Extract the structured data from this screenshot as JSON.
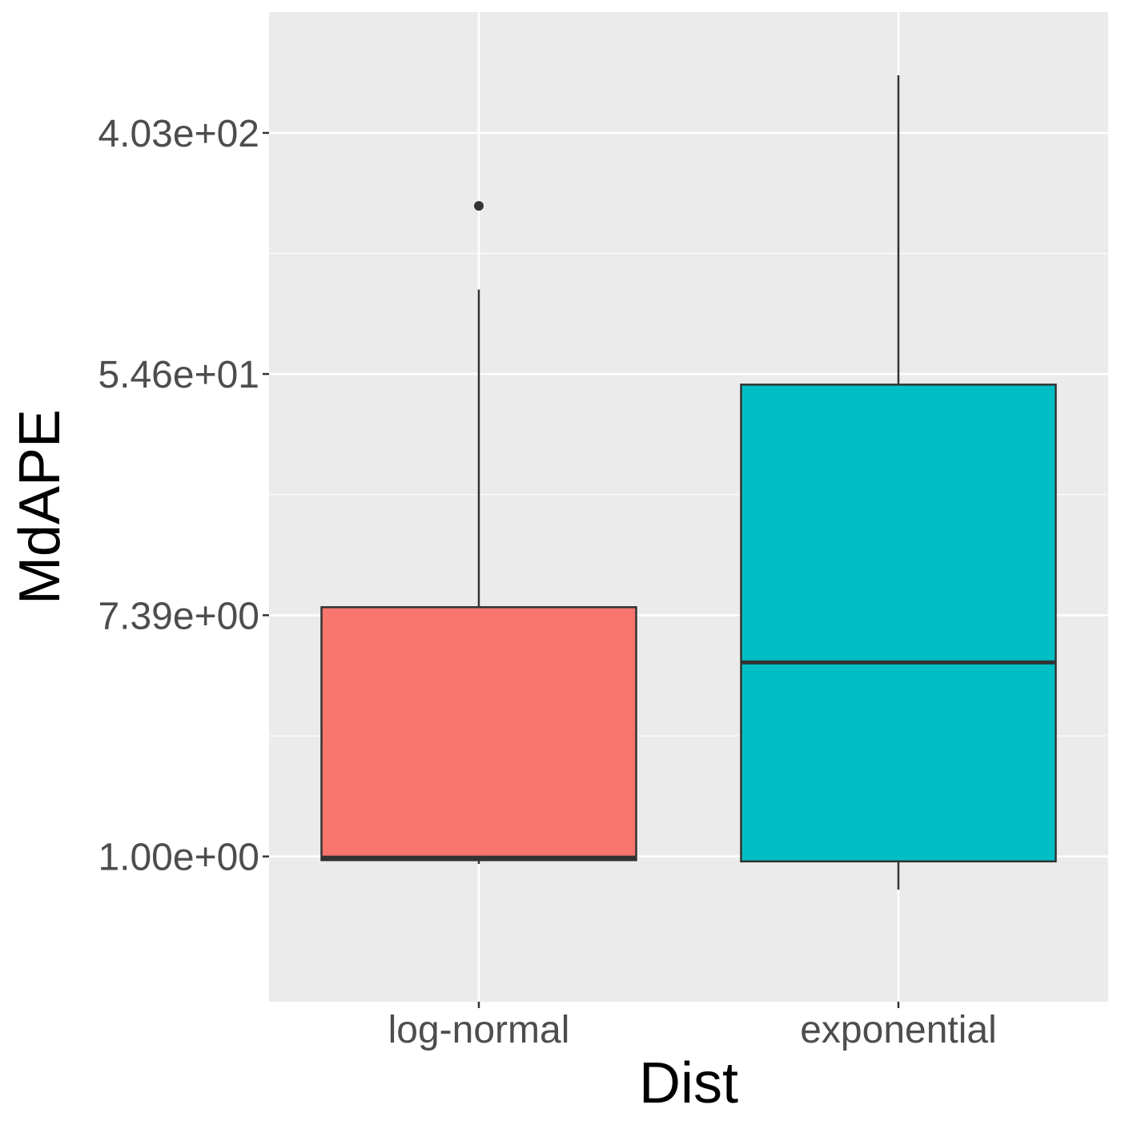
{
  "chart_data": {
    "type": "boxplot",
    "title": "",
    "xlabel": "Dist",
    "ylabel": "MdAPE",
    "yscale": "log",
    "y_tick_values": [
      1.0,
      7.39,
      54.6,
      403
    ],
    "y_tick_labels": [
      "1.00e+00",
      "7.39e+00",
      "5.46e+01",
      "4.03e+02"
    ],
    "ylim": [
      0.3,
      1098
    ],
    "grid": true,
    "legend": "none",
    "categories": [
      "log-normal",
      "exponential"
    ],
    "boxes": [
      {
        "name": "log-normal",
        "fill": "#F8766D",
        "whisker_low": 0.94,
        "q1": 0.97,
        "median": 0.99,
        "q3": 7.9,
        "whisker_high": 110,
        "outliers": [
          220
        ]
      },
      {
        "name": "exponential",
        "fill": "#00BFC4",
        "whisker_low": 0.76,
        "q1": 0.96,
        "median": 5.0,
        "q3": 50,
        "whisker_high": 650,
        "outliers": []
      }
    ]
  }
}
